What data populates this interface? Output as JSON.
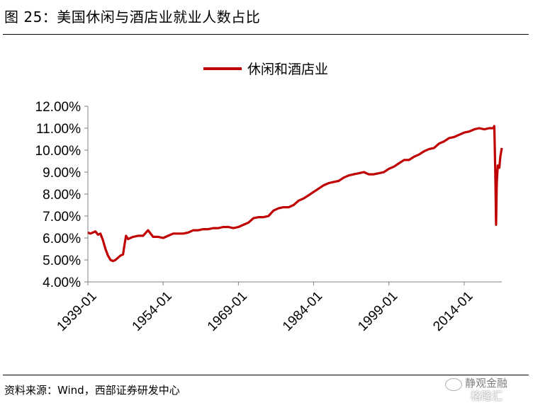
{
  "figure": {
    "title": "图 25：美国休闲与酒店业就业人数占比",
    "source": "资料来源：Wind，西部证券研发中心"
  },
  "watermark": {
    "line1": "静观金融",
    "line2": "格隆汇"
  },
  "chart_data": {
    "type": "line",
    "title": "",
    "xlabel": "",
    "ylabel": "",
    "legend_position": "top-center",
    "grid": false,
    "x_ticks": [
      "1939-01",
      "1954-01",
      "1969-01",
      "1984-01",
      "1999-01",
      "2014-01"
    ],
    "x_range": [
      1939.0,
      2021.5
    ],
    "y_ticks": [
      "4.00%",
      "5.00%",
      "6.00%",
      "7.00%",
      "8.00%",
      "9.00%",
      "10.00%",
      "11.00%",
      "12.00%"
    ],
    "ylim": [
      4.0,
      12.0
    ],
    "series": [
      {
        "name": "休闲和酒店业",
        "color": "#c00000",
        "x": [
          1939.0,
          1939.5,
          1940.0,
          1940.5,
          1941.0,
          1941.5,
          1942.0,
          1942.5,
          1943.0,
          1943.5,
          1944.0,
          1944.5,
          1945.0,
          1945.5,
          1946.0,
          1946.3,
          1946.6,
          1947.0,
          1948.0,
          1949.0,
          1950.0,
          1951.0,
          1951.5,
          1952.0,
          1953.0,
          1954.0,
          1955.0,
          1956.0,
          1957.0,
          1958.0,
          1959.0,
          1960.0,
          1961.0,
          1962.0,
          1963.0,
          1964.0,
          1965.0,
          1966.0,
          1967.0,
          1968.0,
          1969.0,
          1970.0,
          1971.0,
          1972.0,
          1973.0,
          1974.0,
          1975.0,
          1976.0,
          1977.0,
          1978.0,
          1979.0,
          1980.0,
          1981.0,
          1982.0,
          1983.0,
          1984.0,
          1985.0,
          1986.0,
          1987.0,
          1988.0,
          1989.0,
          1990.0,
          1991.0,
          1992.0,
          1993.0,
          1994.0,
          1995.0,
          1996.0,
          1997.0,
          1998.0,
          1999.0,
          2000.0,
          2001.0,
          2002.0,
          2003.0,
          2004.0,
          2005.0,
          2006.0,
          2007.0,
          2008.0,
          2009.0,
          2010.0,
          2011.0,
          2012.0,
          2013.0,
          2014.0,
          2015.0,
          2016.0,
          2017.0,
          2018.0,
          2019.0,
          2019.8,
          2020.0,
          2020.2,
          2020.35,
          2020.5,
          2020.7,
          2021.0,
          2021.2,
          2021.5
        ],
        "y": [
          6.25,
          6.2,
          6.25,
          6.3,
          6.15,
          6.2,
          5.9,
          5.5,
          5.2,
          5.0,
          4.95,
          5.0,
          5.1,
          5.2,
          5.25,
          5.7,
          6.1,
          5.95,
          6.05,
          6.1,
          6.1,
          6.35,
          6.2,
          6.05,
          6.05,
          6.0,
          6.1,
          6.2,
          6.2,
          6.2,
          6.25,
          6.35,
          6.35,
          6.4,
          6.4,
          6.45,
          6.45,
          6.5,
          6.5,
          6.45,
          6.5,
          6.6,
          6.7,
          6.9,
          6.95,
          6.95,
          7.0,
          7.25,
          7.35,
          7.4,
          7.4,
          7.5,
          7.7,
          7.8,
          7.95,
          8.1,
          8.25,
          8.4,
          8.5,
          8.55,
          8.6,
          8.75,
          8.85,
          8.9,
          8.95,
          9.0,
          8.9,
          8.9,
          8.95,
          9.0,
          9.15,
          9.25,
          9.4,
          9.55,
          9.55,
          9.7,
          9.8,
          9.95,
          10.05,
          10.1,
          10.3,
          10.4,
          10.55,
          10.6,
          10.7,
          10.8,
          10.85,
          10.95,
          11.0,
          10.95,
          11.0,
          11.0,
          11.1,
          9.0,
          6.6,
          8.5,
          9.3,
          9.2,
          9.7,
          10.1
        ]
      }
    ]
  }
}
